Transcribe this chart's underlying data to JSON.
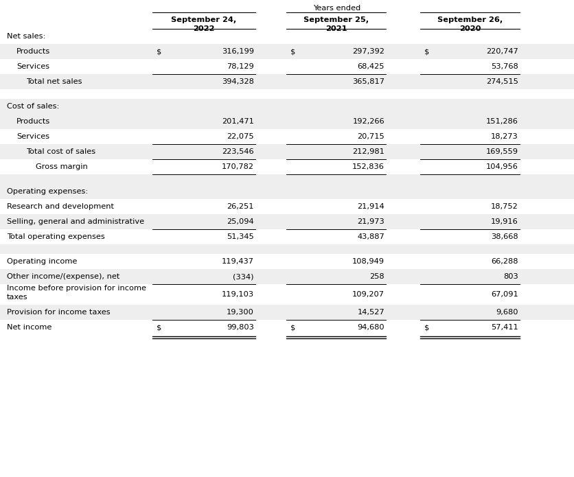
{
  "title": "Years ended",
  "col_headers": [
    "September 24,\n2022",
    "September 25,\n2021",
    "September 26,\n2020"
  ],
  "rows": [
    {
      "label": "Net sales:",
      "type": "section_header",
      "indent": 0,
      "values": [
        "",
        "",
        ""
      ],
      "bg": "white"
    },
    {
      "label": "Products",
      "type": "data_dollar",
      "indent": 1,
      "values": [
        "316,199",
        "297,392",
        "220,747"
      ],
      "bg": "gray"
    },
    {
      "label": "Services",
      "type": "data",
      "indent": 1,
      "values": [
        "78,129",
        "68,425",
        "53,768"
      ],
      "bg": "white"
    },
    {
      "label": "Total net sales",
      "type": "subtotal",
      "indent": 2,
      "values": [
        "394,328",
        "365,817",
        "274,515"
      ],
      "bg": "gray",
      "top_line": true
    },
    {
      "label": "",
      "type": "spacer",
      "indent": 0,
      "values": [
        "",
        "",
        ""
      ],
      "bg": "white"
    },
    {
      "label": "Cost of sales:",
      "type": "section_header",
      "indent": 0,
      "values": [
        "",
        "",
        ""
      ],
      "bg": "gray"
    },
    {
      "label": "Products",
      "type": "data",
      "indent": 1,
      "values": [
        "201,471",
        "192,266",
        "151,286"
      ],
      "bg": "gray"
    },
    {
      "label": "Services",
      "type": "data",
      "indent": 1,
      "values": [
        "22,075",
        "20,715",
        "18,273"
      ],
      "bg": "white"
    },
    {
      "label": "Total cost of sales",
      "type": "subtotal",
      "indent": 2,
      "values": [
        "223,546",
        "212,981",
        "169,559"
      ],
      "bg": "gray",
      "top_line": true
    },
    {
      "label": "Gross margin",
      "type": "subtotal2",
      "indent": 3,
      "values": [
        "170,782",
        "152,836",
        "104,956"
      ],
      "bg": "white",
      "top_line": true,
      "bot_line": true
    },
    {
      "label": "",
      "type": "spacer",
      "indent": 0,
      "values": [
        "",
        "",
        ""
      ],
      "bg": "gray"
    },
    {
      "label": "Operating expenses:",
      "type": "section_header",
      "indent": 0,
      "values": [
        "",
        "",
        ""
      ],
      "bg": "gray"
    },
    {
      "label": "Research and development",
      "type": "data",
      "indent": 0,
      "values": [
        "26,251",
        "21,914",
        "18,752"
      ],
      "bg": "white"
    },
    {
      "label": "Selling, general and administrative",
      "type": "data",
      "indent": 0,
      "values": [
        "25,094",
        "21,973",
        "19,916"
      ],
      "bg": "gray"
    },
    {
      "label": "Total operating expenses",
      "type": "subtotal",
      "indent": 0,
      "values": [
        "51,345",
        "43,887",
        "38,668"
      ],
      "bg": "white",
      "top_line": true
    },
    {
      "label": "",
      "type": "spacer",
      "indent": 0,
      "values": [
        "",
        "",
        ""
      ],
      "bg": "gray"
    },
    {
      "label": "Operating income",
      "type": "data",
      "indent": 0,
      "values": [
        "119,437",
        "108,949",
        "66,288"
      ],
      "bg": "white"
    },
    {
      "label": "Other income/(expense), net",
      "type": "data",
      "indent": 0,
      "values": [
        "(334)",
        "258",
        "803"
      ],
      "bg": "gray"
    },
    {
      "label": "Income before provision for income\ntaxes",
      "type": "data_wrap",
      "indent": 0,
      "values": [
        "119,103",
        "109,207",
        "67,091"
      ],
      "bg": "white",
      "top_line": true
    },
    {
      "label": "Provision for income taxes",
      "type": "data",
      "indent": 0,
      "values": [
        "19,300",
        "14,527",
        "9,680"
      ],
      "bg": "gray"
    },
    {
      "label": "Net income",
      "type": "net_income",
      "indent": 0,
      "values": [
        "99,803",
        "94,680",
        "57,411"
      ],
      "bg": "white",
      "top_line": true
    }
  ],
  "gray_color": "#eeeeee",
  "font_size": 8.2,
  "header_font_size": 8.2
}
